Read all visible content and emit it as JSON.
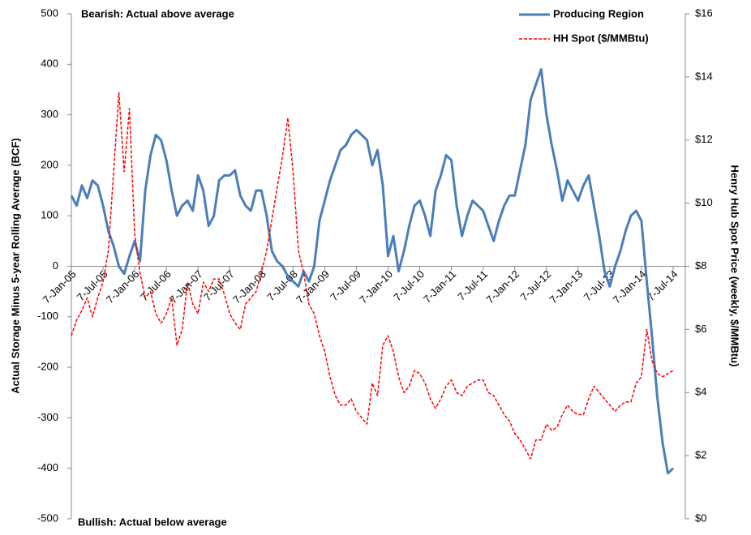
{
  "chart_data": {
    "type": "line",
    "annotations": [
      "Bearish: Actual above average",
      "Bullish: Actual below average"
    ],
    "y_label": "Actual Storage Minus 5-year Rolling Average (BCF)",
    "y2_label": "Henry Hub Spot Price (weekly, $/MMBtu)",
    "legend": "top-right",
    "ylim": [
      -500,
      500
    ],
    "yticks": [
      -500,
      -400,
      -300,
      -200,
      -100,
      0,
      100,
      200,
      300,
      400,
      500
    ],
    "y2lim": [
      0,
      16
    ],
    "y2ticks": [
      {
        "value": 0,
        "label": "$0"
      },
      {
        "value": 2,
        "label": "$2"
      },
      {
        "value": 4,
        "label": "$4"
      },
      {
        "value": 6,
        "label": "$6"
      },
      {
        "value": 8,
        "label": "$8"
      },
      {
        "value": 10,
        "label": "$10"
      },
      {
        "value": 12,
        "label": "$12"
      },
      {
        "value": 14,
        "label": "$14"
      },
      {
        "value": 16,
        "label": "$16"
      }
    ],
    "categories": [
      "7-Jan-05",
      null,
      null,
      null,
      null,
      null,
      "7-Jul-05",
      null,
      null,
      null,
      null,
      null,
      "7-Jan-06",
      null,
      null,
      null,
      null,
      null,
      "7-Jul-06",
      null,
      null,
      null,
      null,
      null,
      "7-Jan-07",
      null,
      null,
      null,
      null,
      null,
      "7-Jul-07",
      null,
      null,
      null,
      null,
      null,
      "7-Jan-08",
      null,
      null,
      null,
      null,
      null,
      "7-Jul-08",
      null,
      null,
      null,
      null,
      null,
      "7-Jan-09",
      null,
      null,
      null,
      null,
      null,
      "7-Jul-09",
      null,
      null,
      null,
      null,
      null,
      "7-Jan-10",
      null,
      null,
      null,
      null,
      null,
      "7-Jul-10",
      null,
      null,
      null,
      null,
      null,
      "7-Jan-11",
      null,
      null,
      null,
      null,
      null,
      "7-Jul-11",
      null,
      null,
      null,
      null,
      null,
      "7-Jan-12",
      null,
      null,
      null,
      null,
      null,
      "7-Jul-12",
      null,
      null,
      null,
      null,
      null,
      "7-Jan-13",
      null,
      null,
      null,
      null,
      null,
      "7-Jul-13",
      null,
      null,
      null,
      null,
      null,
      "7-Jan-14",
      null,
      null,
      null,
      null,
      null,
      "7-Jul-14"
    ],
    "series": [
      {
        "name": "Producing Region",
        "color": "#4a7ebb",
        "dash": false,
        "values": [
          140,
          120,
          160,
          135,
          170,
          160,
          120,
          70,
          40,
          0,
          -15,
          20,
          50,
          10,
          150,
          220,
          260,
          250,
          210,
          150,
          100,
          120,
          130,
          110,
          180,
          150,
          80,
          100,
          170,
          180,
          180,
          190,
          140,
          120,
          110,
          150,
          150,
          100,
          30,
          10,
          0,
          -20,
          -30,
          -40,
          -10,
          -30,
          0,
          90,
          130,
          170,
          200,
          230,
          240,
          260,
          270,
          260,
          250,
          200,
          230,
          160,
          20,
          60,
          -10,
          30,
          80,
          120,
          130,
          100,
          60,
          150,
          180,
          220,
          210,
          120,
          60,
          100,
          130,
          120,
          110,
          80,
          50,
          90,
          120,
          140,
          140,
          190,
          240,
          330,
          360,
          390,
          300,
          240,
          190,
          130,
          170,
          150,
          130,
          160,
          180,
          120,
          60,
          -10,
          -40,
          0,
          30,
          70,
          100,
          110,
          90,
          -30,
          -140,
          -260,
          -350,
          -410,
          -400
        ]
      },
      {
        "name": "HH Spot ($/MMBtu)",
        "color": "#ff0000",
        "dash": true,
        "axis": "y2",
        "values": [
          5.8,
          6.3,
          6.6,
          7.0,
          6.4,
          7.0,
          7.5,
          8.5,
          11.0,
          13.5,
          11.0,
          13.0,
          9.0,
          7.8,
          7.0,
          7.2,
          6.5,
          6.2,
          6.5,
          7.0,
          5.5,
          6.0,
          7.5,
          6.8,
          6.5,
          7.5,
          7.2,
          7.6,
          7.6,
          7.1,
          6.5,
          6.2,
          6.0,
          6.8,
          7.0,
          7.2,
          7.8,
          8.5,
          9.5,
          10.5,
          11.5,
          12.7,
          11.0,
          8.5,
          7.8,
          6.8,
          6.5,
          5.8,
          5.3,
          4.5,
          3.9,
          3.6,
          3.6,
          3.8,
          3.4,
          3.2,
          3.0,
          4.3,
          3.9,
          5.5,
          5.8,
          5.3,
          4.5,
          4.0,
          4.2,
          4.7,
          4.6,
          4.3,
          3.8,
          3.5,
          3.8,
          4.2,
          4.4,
          4.0,
          3.9,
          4.2,
          4.3,
          4.4,
          4.4,
          4.0,
          3.9,
          3.6,
          3.3,
          3.1,
          2.7,
          2.5,
          2.2,
          1.9,
          2.5,
          2.5,
          3.0,
          2.8,
          2.9,
          3.3,
          3.6,
          3.4,
          3.3,
          3.3,
          3.8,
          4.2,
          4.0,
          3.8,
          3.6,
          3.4,
          3.6,
          3.7,
          3.7,
          4.3,
          4.5,
          6.0,
          5.0,
          4.6,
          4.5,
          4.6,
          4.7
        ]
      }
    ]
  }
}
